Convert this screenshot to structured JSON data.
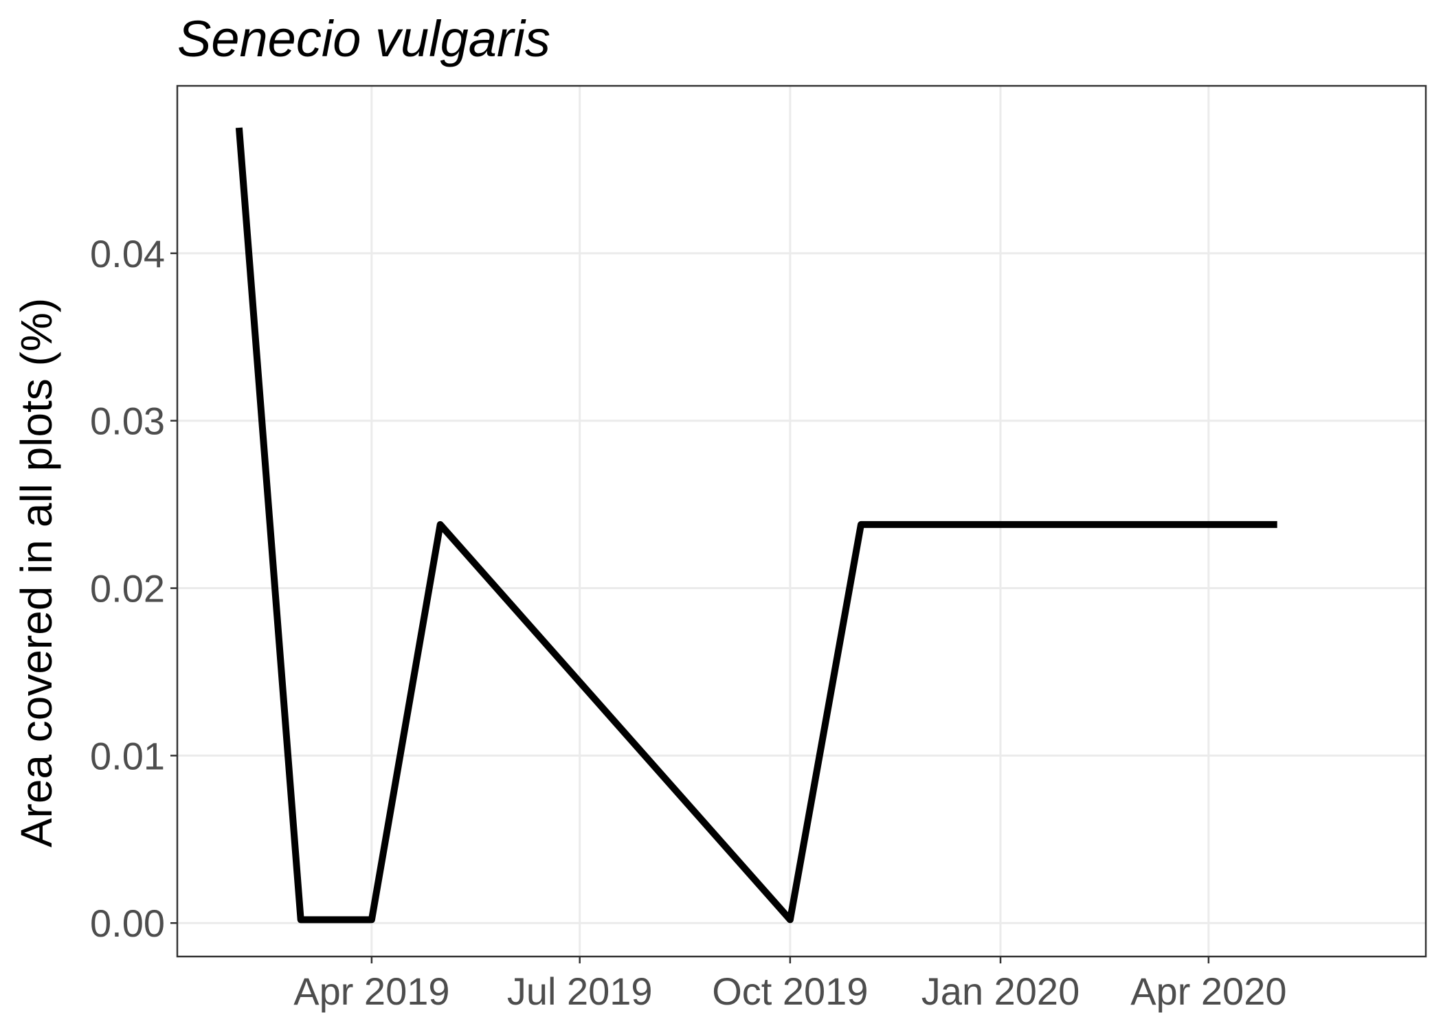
{
  "chart_data": {
    "type": "line",
    "title": "Senecio vulgaris",
    "xlabel": "",
    "ylabel": "Area covered in all plots (%)",
    "x_type": "date",
    "xlim": [
      "2019-01-06",
      "2020-07-05"
    ],
    "ylim": [
      -0.002,
      0.05
    ],
    "x_ticks": [
      {
        "date": "2019-04-01",
        "label": "Apr 2019"
      },
      {
        "date": "2019-07-01",
        "label": "Jul 2019"
      },
      {
        "date": "2019-10-01",
        "label": "Oct 2019"
      },
      {
        "date": "2020-01-01",
        "label": "Jan 2020"
      },
      {
        "date": "2020-04-01",
        "label": "Apr 2020"
      }
    ],
    "y_ticks": [
      {
        "value": 0.0,
        "label": "0.00"
      },
      {
        "value": 0.01,
        "label": "0.01"
      },
      {
        "value": 0.02,
        "label": "0.02"
      },
      {
        "value": 0.03,
        "label": "0.03"
      },
      {
        "value": 0.04,
        "label": "0.04"
      }
    ],
    "grid": true,
    "series": [
      {
        "color": "#000000",
        "x": [
          "2019-02-02",
          "2019-03-01",
          "2019-04-01",
          "2019-05-01",
          "2019-10-01",
          "2019-11-01",
          "2020-05-01"
        ],
        "y": [
          0.0475,
          0.0002,
          0.0002,
          0.0238,
          0.0002,
          0.0238,
          0.0238
        ]
      }
    ]
  }
}
